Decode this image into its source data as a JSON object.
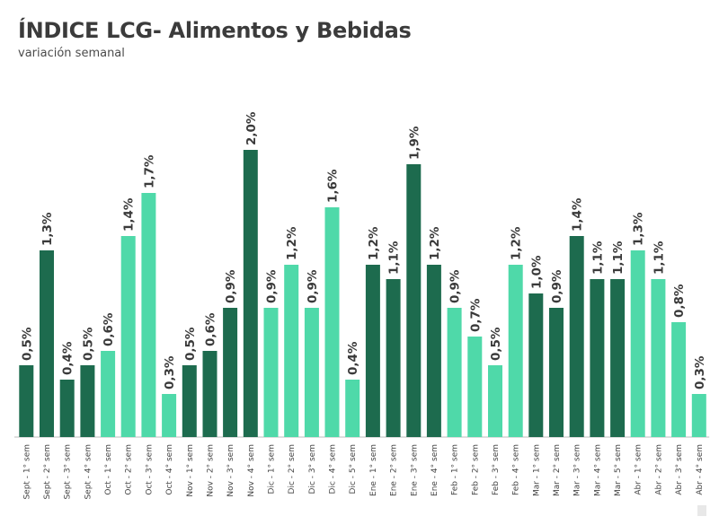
{
  "chart_data": {
    "type": "bar",
    "title": "ÍNDICE LCG- Alimentos y Bebidas",
    "subtitle": "variación semanal",
    "xlabel": "",
    "ylabel": "",
    "ylim": [
      0,
      2.0
    ],
    "colors": {
      "dark": "#1d6b4e",
      "light": "#4fd9a9"
    },
    "categories": [
      "Sept - 1° sem",
      "Sept - 2° sem",
      "Sept - 3° sem",
      "Sept - 4° sem",
      "Oct - 1° sem",
      "Oct - 2° sem",
      "Oct - 3° sem",
      "Oct - 4° sem",
      "Nov - 1° sem",
      "Nov - 2° sem",
      "Nov - 3° sem",
      "Nov - 4° sem",
      "Dic - 1° sem",
      "Dic - 2° sem",
      "Dic - 3° sem",
      "Dic - 4° sem",
      "Dic - 5° sem",
      "Ene - 1° sem",
      "Ene - 2° sem",
      "Ene - 3° sem",
      "Ene - 4° sem",
      "Feb - 1° sem",
      "Feb - 2° sem",
      "Feb - 3° sem",
      "Feb - 4° sem",
      "Mar - 1° sem",
      "Mar - 2° sem",
      "Mar - 3° sem",
      "Mar - 4° sem",
      "Mar - 5° sem",
      "Abr - 1° sem",
      "Abr - 2° sem",
      "Abr - 3° sem",
      "Abr - 4° sem"
    ],
    "values": [
      0.5,
      1.3,
      0.4,
      0.5,
      0.6,
      1.4,
      1.7,
      0.3,
      0.5,
      0.6,
      0.9,
      2.0,
      0.9,
      1.2,
      0.9,
      1.6,
      0.4,
      1.2,
      1.1,
      1.9,
      1.2,
      0.9,
      0.7,
      0.5,
      1.2,
      1.0,
      0.9,
      1.4,
      1.1,
      1.1,
      1.3,
      1.1,
      0.8,
      0.3
    ],
    "value_labels": [
      "0,5%",
      "1,3%",
      "0,4%",
      "0,5%",
      "0,6%",
      "1,4%",
      "1,7%",
      "0,3%",
      "0,5%",
      "0,6%",
      "0,9%",
      "2,0%",
      "0,9%",
      "1,2%",
      "0,9%",
      "1,6%",
      "0,4%",
      "1,2%",
      "1,1%",
      "1,9%",
      "1,2%",
      "0,9%",
      "0,7%",
      "0,5%",
      "1,2%",
      "1,0%",
      "0,9%",
      "1,4%",
      "1,1%",
      "1,1%",
      "1,3%",
      "1,1%",
      "0,8%",
      "0,3%"
    ],
    "bar_shades": [
      "dark",
      "dark",
      "dark",
      "dark",
      "light",
      "light",
      "light",
      "light",
      "dark",
      "dark",
      "dark",
      "dark",
      "light",
      "light",
      "light",
      "light",
      "light",
      "dark",
      "dark",
      "dark",
      "dark",
      "light",
      "light",
      "light",
      "light",
      "dark",
      "dark",
      "dark",
      "dark",
      "dark",
      "light",
      "light",
      "light",
      "light"
    ]
  }
}
